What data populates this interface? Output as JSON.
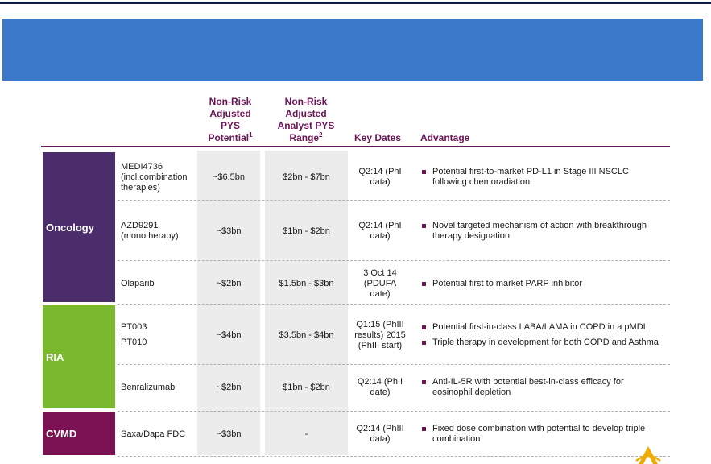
{
  "colors": {
    "header_text": "#6b1556",
    "banner": "#3a78c9",
    "oncology": "#4b2d6b",
    "ria": "#7ab82e",
    "cvmd": "#7b1152"
  },
  "headers": {
    "potential": {
      "text": "Non-Risk Adjusted PYS Potential",
      "sup": "1"
    },
    "range": {
      "text": "Non-Risk Adjusted Analyst PYS Range",
      "sup": "2"
    },
    "key_dates": "Key Dates",
    "advantage": "Advantage"
  },
  "segments": {
    "oncology": "Oncology",
    "ria": "RIA",
    "cvmd": "CVMD"
  },
  "rows": [
    {
      "product": "MEDI4736 (incl.combination therapies)",
      "potential": "~$6.5bn",
      "range": "$2bn - $7bn",
      "key_date": "Q2:14 (PhI data)",
      "advantages": [
        "Potential first-to-market PD-L1 in Stage III NSCLC following chemoradiation"
      ]
    },
    {
      "product": "AZD9291 (monotherapy)",
      "potential": "~$3bn",
      "range": "$1bn - $2bn",
      "key_date": "Q2:14 (PhI data)",
      "advantages": [
        "Novel targeted mechanism of action with breakthrough therapy designation"
      ]
    },
    {
      "product": "Olaparib",
      "potential": "~$2bn",
      "range": "$1.5bn - $3bn",
      "key_date": "3 Oct 14 (PDUFA date)",
      "advantages": [
        "Potential first to market PARP inhibitor"
      ]
    },
    {
      "product_lines": [
        "PT003",
        "PT010"
      ],
      "potential": "~$4bn",
      "range": "$3.5bn - $4bn",
      "key_date": "Q1:15 (PhIII results) 2015 (PhIII start)",
      "advantages": [
        "Potential first-in-class LABA/LAMA in COPD in a pMDI",
        "Triple therapy in development for both COPD and Asthma"
      ]
    },
    {
      "product": "Benralizumab",
      "potential": "~$2bn",
      "range": "$1bn - $2bn",
      "key_date": "Q2:14 (PhII date)",
      "advantages": [
        "Anti-IL-5R with potential best-in-class efficacy for eosinophil depletion"
      ]
    },
    {
      "product": "Saxa/Dapa FDC",
      "potential": "~$3bn",
      "range": "-",
      "key_date": "Q2:14 (PhIII data)",
      "advantages": [
        "Fixed dose combination with potential to develop triple combination"
      ]
    }
  ]
}
